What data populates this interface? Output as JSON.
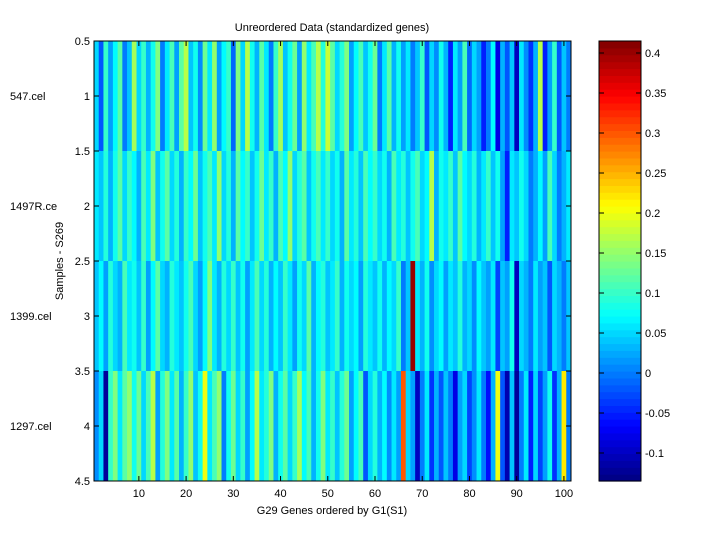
{
  "chart_data": {
    "type": "heatmap",
    "title": "Unreordered Data (standardized genes)",
    "xlabel": "G29 Genes ordered by G1(S1)",
    "ylabel": "Samples - S269",
    "xlim": [
      0.5,
      101.5
    ],
    "ylim": [
      0.5,
      4.5
    ],
    "x_ticks": [
      "10",
      "20",
      "30",
      "40",
      "50",
      "60",
      "70",
      "80",
      "90",
      "100"
    ],
    "y_ticks": [
      "0.5",
      "1",
      "1.5",
      "2",
      "2.5",
      "3",
      "3.5",
      "4",
      "4.5"
    ],
    "row_labels": [
      "547.cel",
      "1497R.ce",
      "1399.cel",
      "1297.cel"
    ],
    "colorbar": {
      "colormap": "jet",
      "clim": [
        -0.135,
        0.415
      ],
      "ticks": [
        "0.4",
        "0.35",
        "0.3",
        "0.25",
        "0.2",
        "0.15",
        "0.1",
        "0.05",
        "0",
        "-0.05",
        "-0.1"
      ]
    },
    "values": [
      [
        0.05,
        -0.02,
        0.1,
        0.02,
        0.07,
        0.12,
        0.0,
        0.04,
        0.16,
        0.05,
        0.1,
        0.03,
        0.08,
        0.14,
        0.0,
        0.06,
        0.11,
        0.02,
        0.12,
        0.17,
        0.04,
        0.08,
        0.01,
        0.13,
        0.06,
        0.15,
        0.02,
        0.07,
        0.1,
        -0.01,
        0.14,
        0.05,
        0.17,
        0.08,
        0.03,
        0.12,
        0.06,
        0.0,
        0.1,
        0.16,
        0.04,
        0.08,
        0.13,
        0.02,
        0.15,
        0.06,
        0.11,
        0.17,
        0.09,
        0.18,
        0.12,
        0.05,
        0.09,
        0.14,
        0.02,
        0.07,
        0.11,
        0.04,
        0.08,
        0.13,
        0.0,
        0.06,
        0.12,
        0.03,
        0.08,
        0.02,
        0.06,
        0.0,
        0.04,
        0.1,
        -0.02,
        0.05,
        0.01,
        0.08,
        0.03,
        -0.05,
        0.06,
        0.02,
        0.11,
        -0.01,
        0.05,
        0.02,
        -0.05,
        0.0,
        0.07,
        -0.08,
        0.03,
        -0.02,
        0.04,
        -0.1,
        0.06,
        0.01,
        -0.04,
        0.03,
        0.17,
        -0.05,
        0.02,
        0.1,
        -0.02,
        0.04,
        0.0
      ],
      [
        0.06,
        0.04,
        0.09,
        0.03,
        0.08,
        0.12,
        0.05,
        0.1,
        0.07,
        0.03,
        0.11,
        0.06,
        0.14,
        0.04,
        0.08,
        0.12,
        0.05,
        0.09,
        0.03,
        0.1,
        0.07,
        0.13,
        0.04,
        0.08,
        0.11,
        0.06,
        0.15,
        0.05,
        0.09,
        0.03,
        0.12,
        0.07,
        0.1,
        0.04,
        0.08,
        0.13,
        0.06,
        0.1,
        0.03,
        0.11,
        0.07,
        0.15,
        0.05,
        0.09,
        0.12,
        0.04,
        0.08,
        0.11,
        0.06,
        0.1,
        0.05,
        0.08,
        0.03,
        0.12,
        0.06,
        0.09,
        0.04,
        0.11,
        0.07,
        0.1,
        0.05,
        0.08,
        0.03,
        0.11,
        0.06,
        0.09,
        0.04,
        0.08,
        0.11,
        0.05,
        0.07,
        0.17,
        0.03,
        0.08,
        0.06,
        0.1,
        0.04,
        0.12,
        0.07,
        0.05,
        0.09,
        0.03,
        0.06,
        0.1,
        0.04,
        0.08,
        0.02,
        -0.05,
        0.06,
        0.04,
        0.08,
        0.05,
        0.0,
        0.03,
        0.07,
        0.02,
        0.11,
        0.05,
        0.0,
        0.03,
        0.06
      ],
      [
        0.04,
        0.07,
        0.02,
        0.09,
        0.05,
        0.03,
        0.11,
        0.06,
        0.08,
        0.04,
        0.1,
        0.02,
        0.07,
        0.12,
        0.05,
        0.03,
        0.09,
        0.06,
        0.04,
        0.08,
        0.11,
        0.05,
        0.02,
        0.07,
        0.14,
        0.06,
        0.03,
        0.09,
        0.05,
        0.1,
        0.04,
        0.08,
        0.02,
        0.06,
        0.11,
        0.05,
        0.09,
        0.03,
        0.07,
        0.04,
        0.1,
        0.06,
        0.02,
        0.08,
        0.05,
        0.12,
        0.03,
        0.07,
        0.09,
        0.04,
        0.06,
        0.1,
        0.03,
        0.08,
        0.05,
        0.07,
        0.02,
        0.09,
        0.06,
        0.04,
        0.08,
        0.03,
        0.07,
        0.05,
        0.1,
        0.0,
        0.04,
        0.4,
        0.06,
        0.03,
        0.08,
        0.01,
        0.05,
        0.07,
        0.02,
        0.06,
        0.04,
        0.09,
        0.03,
        0.05,
        0.01,
        0.07,
        0.04,
        0.02,
        0.06,
        -0.03,
        0.04,
        0.02,
        0.08,
        -0.1,
        0.05,
        0.03,
        0.0,
        0.06,
        0.02,
        0.04,
        -0.02,
        0.05,
        0.03,
        0.0,
        0.04
      ],
      [
        0.01,
        0.05,
        -0.12,
        0.1,
        0.14,
        0.06,
        0.12,
        0.15,
        0.08,
        0.13,
        0.05,
        0.11,
        0.17,
        0.02,
        0.09,
        0.14,
        0.06,
        0.12,
        0.03,
        0.1,
        0.15,
        0.04,
        0.08,
        0.2,
        0.06,
        0.11,
        0.15,
        0.0,
        0.08,
        0.13,
        0.05,
        0.1,
        0.02,
        0.07,
        0.17,
        0.06,
        0.09,
        0.14,
        0.03,
        0.08,
        0.12,
        0.05,
        0.1,
        0.16,
        0.07,
        0.11,
        0.03,
        0.08,
        0.14,
        0.06,
        0.1,
        0.04,
        0.09,
        0.13,
        0.02,
        0.07,
        0.11,
        -0.02,
        0.05,
        0.09,
        0.03,
        0.07,
        0.01,
        0.06,
        0.02,
        0.3,
        0.05,
        0.02,
        -0.1,
        0.0,
        0.06,
        -0.04,
        0.03,
        -0.02,
        0.04,
        0.0,
        -0.08,
        0.02,
        0.05,
        -0.03,
        0.01,
        0.06,
        0.0,
        -0.06,
        0.03,
        0.2,
        -0.02,
        -0.11,
        0.04,
        -0.12,
        0.0,
        0.06,
        -0.05,
        0.05,
        -0.03,
        0.02,
        0.08,
        -0.04,
        0.03,
        0.22,
        0.0
      ]
    ]
  }
}
